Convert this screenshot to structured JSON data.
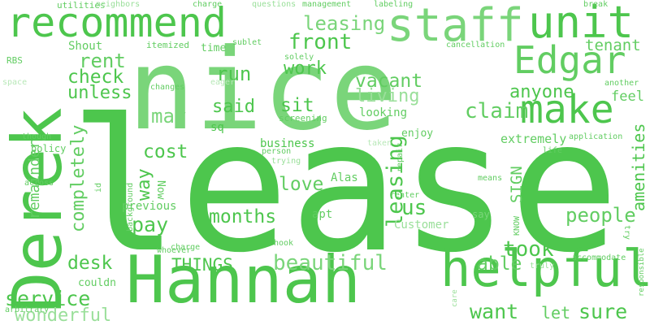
{
  "words": {
    "lease": "lease",
    "nice": "nice",
    "hannah": "Hannah",
    "derek": "Derek",
    "recommend": "recommend",
    "staff": "staff",
    "unit": "unit",
    "edgar": "Edgar",
    "make": "make",
    "helpful": "helpful",
    "leasing": "leasing",
    "front": "front",
    "rent": "rent",
    "check": "check",
    "unless": "unless",
    "run": "run",
    "work": "work",
    "vacant": "vacant",
    "living": "living",
    "anyone": "anyone",
    "claim": "claim",
    "feel": "feel",
    "tenant": "tenant",
    "may": "may",
    "said": "said",
    "sit": "sit",
    "completely": "completely",
    "cost": "cost",
    "way": "way",
    "pay": "pay",
    "love": "love",
    "months": "months",
    "us": "us",
    "people": "people",
    "amenities": "amenities",
    "desk": "desk",
    "things": "THINGS",
    "beautiful": "beautiful",
    "able": "able",
    "took": "took",
    "service": "service",
    "remainder": "remainder",
    "wonderful": "wonderful",
    "want": "want",
    "let": "let",
    "sure": "sure",
    "sign": "SIGN",
    "business": "business",
    "extremely": "extremely",
    "alas": "Alas",
    "apt": "apt",
    "customer": "Customer",
    "say": "say",
    "previous": "previous",
    "now": "Now",
    "couldnt": "couldn",
    "policy": "policy",
    "sq": "sq",
    "looking": "looking",
    "enjoy": "enjoy",
    "screening": "screening",
    "shout": "Shout",
    "time": "time",
    "itemized": "itemized",
    "sublet": "sublet",
    "solely": "solely",
    "rbs": "RBS",
    "space": "space",
    "utilities": "utilities",
    "neighbors": "neighbors",
    "charge_top": "charge",
    "questions": "questions",
    "management": "management",
    "labeling": "labeling",
    "break": "break",
    "cancellation": "cancellation",
    "changes": "changes",
    "eager": "eager",
    "another": "another",
    "application": "application",
    "life": "life",
    "though": "though",
    "across": "across",
    "id": "id",
    "background": "background",
    "charge_mid": "charge",
    "person": "person",
    "trying": "trying",
    "taken": "taken",
    "repair": "repair",
    "means": "means",
    "renter": "renter",
    "know": "KNOW",
    "try": "try",
    "whoever": "whoever",
    "hook": "hook",
    "accommodate": "accommodate",
    "responsible": "responsible",
    "truly": "truly",
    "care": "care",
    "arbitrary": "arbitrary"
  },
  "colors": {
    "tone1": "#4dc64d",
    "tone2": "#62cd62",
    "tone3": "#7ad57a",
    "tone4": "#9adf9a",
    "tone5": "#b8e8b8"
  }
}
